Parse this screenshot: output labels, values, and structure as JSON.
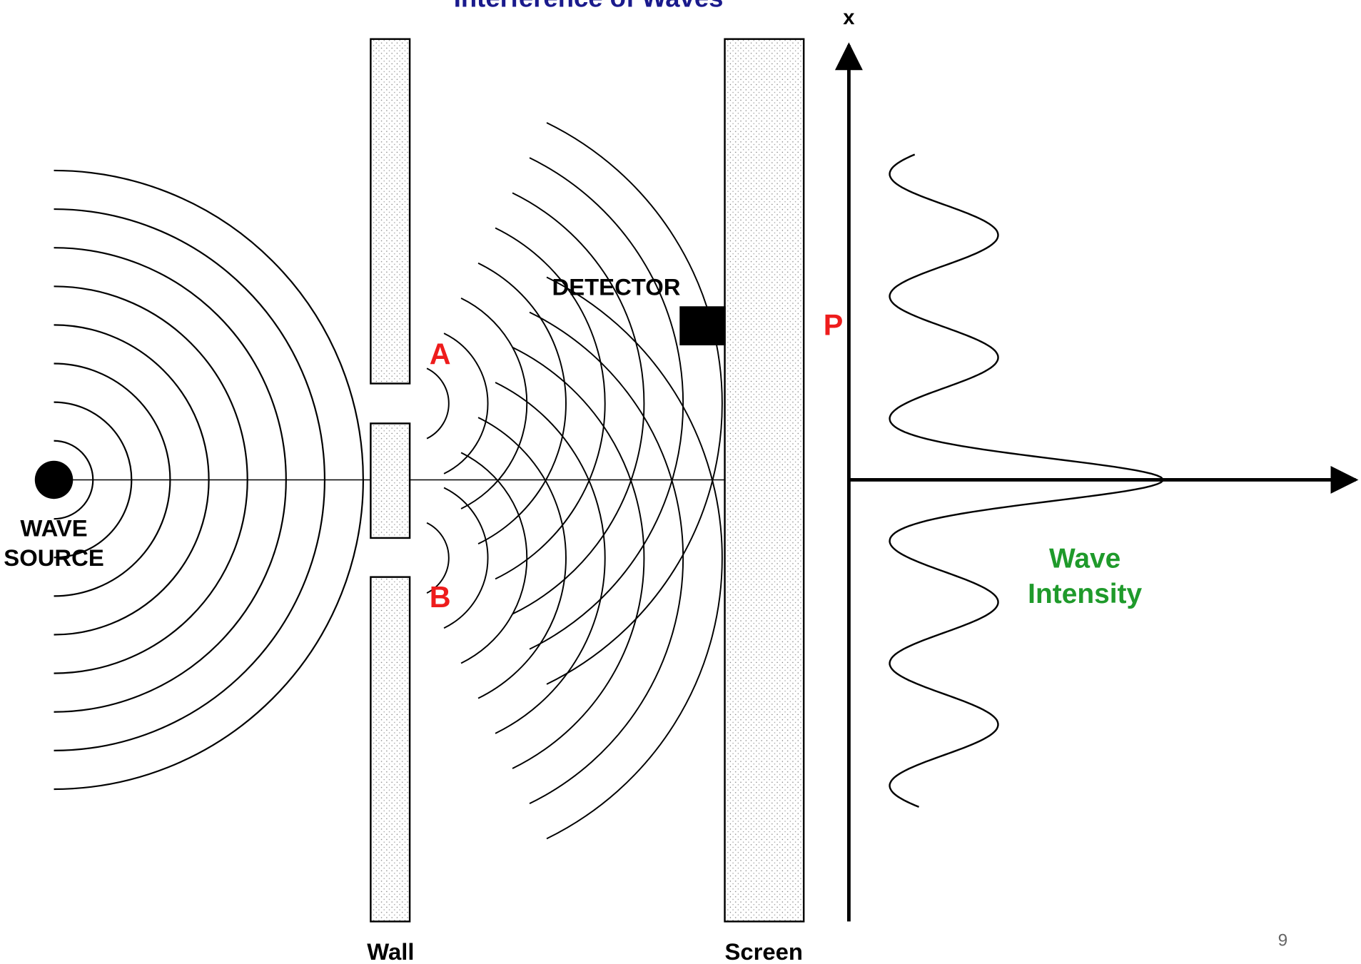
{
  "title": "Interference of Waves",
  "labels": {
    "source_line1": "WAVE",
    "source_line2": "SOURCE",
    "wall": "Wall",
    "screen": "Screen",
    "detector": "DETECTOR",
    "slit_a": "A",
    "slit_b": "B",
    "point_p": "P",
    "axis_x": "x",
    "intensity_line1": "Wave",
    "intensity_line2": "Intensity"
  },
  "page_number": "9"
}
